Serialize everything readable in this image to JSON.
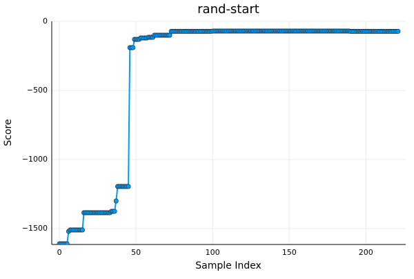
{
  "chart_data": {
    "type": "line-scatter",
    "title": "rand-start",
    "x_label": "Sample Index",
    "y_label": "Score",
    "x": [
      0,
      1,
      2,
      3,
      4,
      5,
      6,
      7,
      8,
      9,
      10,
      11,
      12,
      13,
      14,
      15,
      16,
      17,
      18,
      19,
      20,
      21,
      22,
      23,
      24,
      25,
      26,
      27,
      28,
      29,
      30,
      31,
      32,
      33,
      34,
      35,
      36,
      37,
      38,
      39,
      40,
      41,
      42,
      43,
      44,
      45,
      46,
      47,
      48,
      49,
      50,
      51,
      52,
      53,
      54,
      55,
      56,
      57,
      58,
      59,
      60,
      61,
      62,
      63,
      64,
      65,
      66,
      67,
      68,
      69,
      70,
      71,
      72,
      73,
      74,
      75,
      76,
      77,
      78,
      79,
      80,
      81,
      82,
      83,
      84,
      85,
      86,
      87,
      88,
      89,
      90,
      91,
      92,
      93,
      94,
      95,
      96,
      97,
      98,
      99,
      100,
      101,
      102,
      103,
      104,
      105,
      106,
      107,
      108,
      109,
      110,
      111,
      112,
      113,
      114,
      115,
      116,
      117,
      118,
      119,
      120,
      121,
      122,
      123,
      124,
      125,
      126,
      127,
      128,
      129,
      130,
      131,
      132,
      133,
      134,
      135,
      136,
      137,
      138,
      139,
      140,
      141,
      142,
      143,
      144,
      145,
      146,
      147,
      148,
      149,
      150,
      151,
      152,
      153,
      154,
      155,
      156,
      157,
      158,
      159,
      160,
      161,
      162,
      163,
      164,
      165,
      166,
      167,
      168,
      169,
      170,
      171,
      172,
      173,
      174,
      175,
      176,
      177,
      178,
      179,
      180,
      181,
      182,
      183,
      184,
      185,
      186,
      187,
      188,
      189,
      190,
      191,
      192,
      193,
      194,
      195,
      196,
      197,
      198,
      199,
      200,
      201,
      202,
      203,
      204,
      205,
      206,
      207,
      208,
      209,
      210,
      211,
      212,
      213,
      214,
      215,
      216,
      217,
      218,
      219,
      220,
      221
    ],
    "values": [
      -1610,
      -1610,
      -1610,
      -1610,
      -1610,
      -1610,
      -1520,
      -1510,
      -1510,
      -1510,
      -1510,
      -1510,
      -1510,
      -1510,
      -1510,
      -1510,
      -1385,
      -1385,
      -1385,
      -1385,
      -1385,
      -1385,
      -1385,
      -1385,
      -1385,
      -1385,
      -1385,
      -1385,
      -1385,
      -1385,
      -1385,
      -1385,
      -1385,
      -1385,
      -1375,
      -1375,
      -1375,
      -1300,
      -1195,
      -1195,
      -1195,
      -1195,
      -1195,
      -1195,
      -1195,
      -1195,
      -190,
      -190,
      -190,
      -130,
      -130,
      -130,
      -130,
      -120,
      -120,
      -120,
      -120,
      -120,
      -115,
      -115,
      -115,
      -115,
      -100,
      -100,
      -100,
      -100,
      -100,
      -100,
      -100,
      -100,
      -100,
      -100,
      -100,
      -72,
      -72,
      -72,
      -72,
      -72,
      -72,
      -72,
      -72,
      -72,
      -72,
      -72,
      -72,
      -72,
      -72,
      -72,
      -72,
      -72,
      -72,
      -72,
      -72,
      -72,
      -72,
      -72,
      -72,
      -72,
      -72,
      -72,
      -70,
      -70,
      -70,
      -70,
      -70,
      -70,
      -70,
      -70,
      -70,
      -70,
      -70,
      -70,
      -70,
      -70,
      -70,
      -70,
      -70,
      -70,
      -70,
      -70,
      -70,
      -70,
      -70,
      -70,
      -70,
      -70,
      -70,
      -70,
      -70,
      -70,
      -70,
      -70,
      -70,
      -70,
      -70,
      -70,
      -70,
      -70,
      -70,
      -70,
      -70,
      -70,
      -70,
      -70,
      -70,
      -70,
      -70,
      -70,
      -70,
      -70,
      -70,
      -70,
      -70,
      -70,
      -70,
      -70,
      -70,
      -70,
      -70,
      -70,
      -70,
      -70,
      -70,
      -70,
      -70,
      -70,
      -70,
      -70,
      -70,
      -70,
      -70,
      -70,
      -70,
      -70,
      -70,
      -70,
      -70,
      -70,
      -70,
      -70,
      -70,
      -70,
      -70,
      -70,
      -70,
      -70,
      -70,
      -70,
      -70,
      -70,
      -72,
      -72,
      -72,
      -72,
      -72,
      -72,
      -72,
      -72,
      -72,
      -72,
      -72,
      -72,
      -72,
      -72,
      -72,
      -72,
      -72,
      -72,
      -72,
      -72,
      -72,
      -72,
      -72,
      -72,
      -72,
      -72,
      -72,
      -72,
      -72,
      -72,
      -72,
      -72
    ],
    "color": "#009af9",
    "xlim": [
      -5,
      226
    ],
    "xticks": [
      0,
      50,
      100,
      150,
      200
    ],
    "ylim": [
      -1615,
      0
    ],
    "yticks": [
      {
        "value": -1500,
        "label": "−1500"
      },
      {
        "value": -1000,
        "label": "−1000"
      },
      {
        "value": -500,
        "label": "−500"
      },
      0
    ],
    "grid": true
  }
}
